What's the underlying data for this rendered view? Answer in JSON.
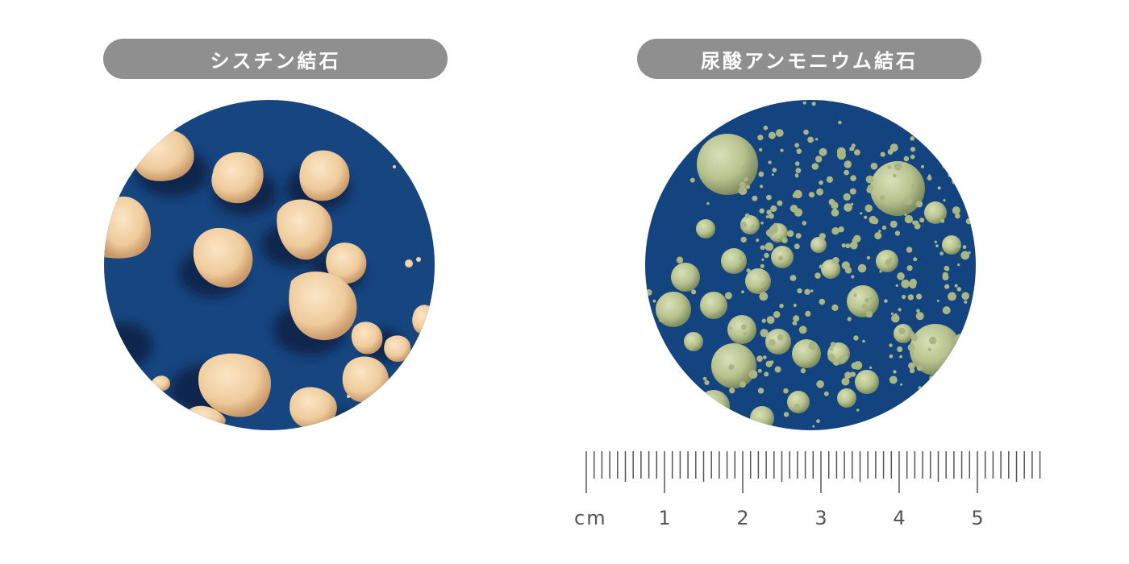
{
  "panels": [
    {
      "label": "シスチン結石",
      "stone_color": "#f0cfa2",
      "background_color": "#17457f"
    },
    {
      "label": "尿酸アンモニウム結石",
      "stone_color": "#b9c490",
      "background_color": "#14447f"
    }
  ],
  "ruler": {
    "unit": "cm",
    "major_labels": [
      "1",
      "2",
      "3",
      "4",
      "5"
    ],
    "minor_per_cm": 10
  },
  "colors": {
    "pill_bg": "#8f8f8f",
    "pill_text": "#ffffff",
    "ruler": "#555555"
  }
}
